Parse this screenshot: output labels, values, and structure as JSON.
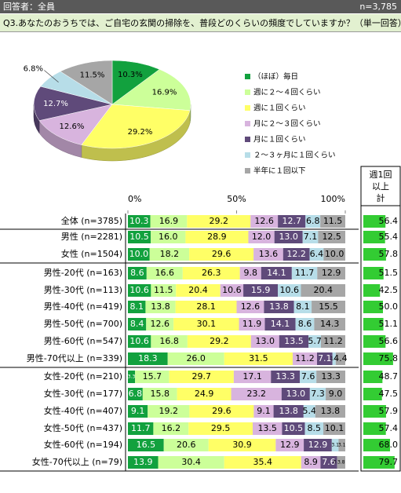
{
  "header": {
    "left": "回答者：全員",
    "right": "n=3,785",
    "question": "Q3.あなたのおうちでは、ご自宅の玄関の掃除を、普段どのくらいの頻度でしていますか？（単一回答）"
  },
  "chart_data": [
    {
      "type": "pie",
      "categories": [
        "（ほぼ）毎日",
        "週に２～４回くらい",
        "週に１回くらい",
        "月に２～３回くらい",
        "月に１回くらい",
        "２～３ヶ月に１回くらい",
        "半年に１回以下"
      ],
      "values": [
        10.3,
        16.9,
        29.2,
        12.6,
        12.7,
        6.8,
        11.5
      ],
      "value_labels": [
        "10.3%",
        "16.9%",
        "29.2%",
        "12.6%",
        "12.7%",
        "6.8%",
        "11.5%"
      ],
      "colors": [
        "#12a13e",
        "#ccff99",
        "#ffff66",
        "#d8b4de",
        "#5f4a7a",
        "#b7dde8",
        "#a6a6a6"
      ],
      "legend": "right"
    },
    {
      "type": "stacked_bar",
      "orientation": "horizontal",
      "categories": [
        "全体 (n=3785)",
        "男性 (n=2281)",
        "女性 (n=1504)",
        "男性-20代 (n=163)",
        "男性-30代 (n=113)",
        "男性-40代 (n=419)",
        "男性-50代 (n=700)",
        "男性-60代 (n=547)",
        "男性-70代以上 (n=339)",
        "女性-20代 (n=210)",
        "女性-30代 (n=177)",
        "女性-40代 (n=407)",
        "女性-50代 (n=437)",
        "女性-60代 (n=194)",
        "女性-70代以上 (n=79)"
      ],
      "xlim": [
        0,
        100
      ],
      "xticks": [
        {
          "value": 0,
          "label": "0%"
        },
        {
          "value": 50,
          "label": "50%"
        },
        {
          "value": 100,
          "label": "100%"
        }
      ],
      "series": [
        {
          "color": "#12a13e",
          "values": [
            10.3,
            10.5,
            10.0,
            8.6,
            10.6,
            8.1,
            8.4,
            10.6,
            18.3,
            3.3,
            6.8,
            9.1,
            11.7,
            16.5,
            13.9
          ],
          "value_labels": [
            "10.3",
            "10.5",
            "10.0",
            "8.6",
            "10.6",
            "8.1",
            "8.4",
            "10.6",
            "18.3",
            "3.3",
            "6.8",
            "9.1",
            "11.7",
            "16.5",
            "13.9"
          ]
        },
        {
          "color": "#ccff99",
          "values": [
            16.9,
            16.0,
            18.2,
            16.6,
            11.5,
            13.8,
            12.6,
            16.8,
            26.0,
            15.7,
            15.8,
            19.2,
            16.2,
            20.6,
            30.4
          ],
          "value_labels": [
            "16.9",
            "16.0",
            "18.2",
            "16.6",
            "11.5",
            "13.8",
            "12.6",
            "16.8",
            "26.0",
            "15.7",
            "15.8",
            "19.2",
            "16.2",
            "20.6",
            "30.4"
          ]
        },
        {
          "color": "#ffff66",
          "values": [
            29.2,
            28.9,
            29.6,
            26.3,
            20.4,
            28.1,
            30.1,
            29.2,
            31.5,
            29.7,
            24.9,
            29.6,
            29.5,
            30.9,
            35.4
          ],
          "value_labels": [
            "29.2",
            "28.9",
            "29.6",
            "26.3",
            "20.4",
            "28.1",
            "30.1",
            "29.2",
            "31.5",
            "29.7",
            "24.9",
            "29.6",
            "29.5",
            "30.9",
            "35.4"
          ]
        },
        {
          "color": "#d8b4de",
          "values": [
            12.6,
            12.0,
            13.6,
            9.8,
            10.6,
            12.6,
            11.9,
            13.0,
            11.2,
            17.1,
            23.2,
            9.1,
            13.5,
            12.9,
            8.9
          ],
          "value_labels": [
            "12.6",
            "12.0",
            "13.6",
            "9.8",
            "10.6",
            "12.6",
            "11.9",
            "13.0",
            "11.2",
            "17.1",
            "23.2",
            "9.1",
            "13.5",
            "12.9",
            "8.9"
          ]
        },
        {
          "color": "#5f4a7a",
          "values": [
            12.7,
            13.0,
            12.2,
            14.1,
            15.9,
            13.8,
            14.1,
            13.5,
            7.1,
            13.3,
            13.0,
            13.8,
            10.5,
            12.9,
            7.6
          ],
          "value_labels": [
            "12.7",
            "13.0",
            "12.2",
            "14.1",
            "15.9",
            "13.8",
            "14.1",
            "13.5",
            "7.1",
            "13.3",
            "13.0",
            "13.8",
            "10.5",
            "12.9",
            "7.6"
          ]
        },
        {
          "color": "#b7dde8",
          "values": [
            6.8,
            7.1,
            6.4,
            11.7,
            10.6,
            8.1,
            8.6,
            5.7,
            1.5,
            7.6,
            7.3,
            5.4,
            8.5,
            3.1,
            0.0
          ],
          "value_labels": [
            "6.8",
            "7.1",
            "6.4",
            "11.7",
            "10.6",
            "8.1",
            "8.6",
            "5.7",
            "1.5",
            "7.6",
            "7.3",
            "5.4",
            "8.5",
            "3.1",
            "0.0"
          ]
        },
        {
          "color": "#a6a6a6",
          "values": [
            11.5,
            12.5,
            10.0,
            12.9,
            20.4,
            15.5,
            14.3,
            11.2,
            4.4,
            13.3,
            9.0,
            13.8,
            10.1,
            3.1,
            3.8
          ],
          "value_labels": [
            "11.5",
            "12.5",
            "10.0",
            "12.9",
            "20.4",
            "15.5",
            "14.3",
            "11.2",
            "4.4",
            "13.3",
            "9.0",
            "13.8",
            "10.1",
            "3.1",
            "3.8"
          ]
        }
      ]
    },
    {
      "type": "bar",
      "orientation": "horizontal",
      "title": "週1回以上計",
      "color": "#33cc33",
      "xlim": [
        0,
        100
      ],
      "values": [
        56.4,
        55.4,
        57.8,
        51.5,
        42.5,
        50.0,
        51.1,
        56.6,
        75.8,
        48.7,
        47.5,
        57.9,
        57.4,
        68.0,
        79.7
      ],
      "value_labels": [
        "56.4",
        "55.4",
        "57.8",
        "51.5",
        "42.5",
        "50.0",
        "51.1",
        "56.6",
        "75.8",
        "48.7",
        "47.5",
        "57.9",
        "57.4",
        "68.0",
        "79.7"
      ]
    }
  ]
}
